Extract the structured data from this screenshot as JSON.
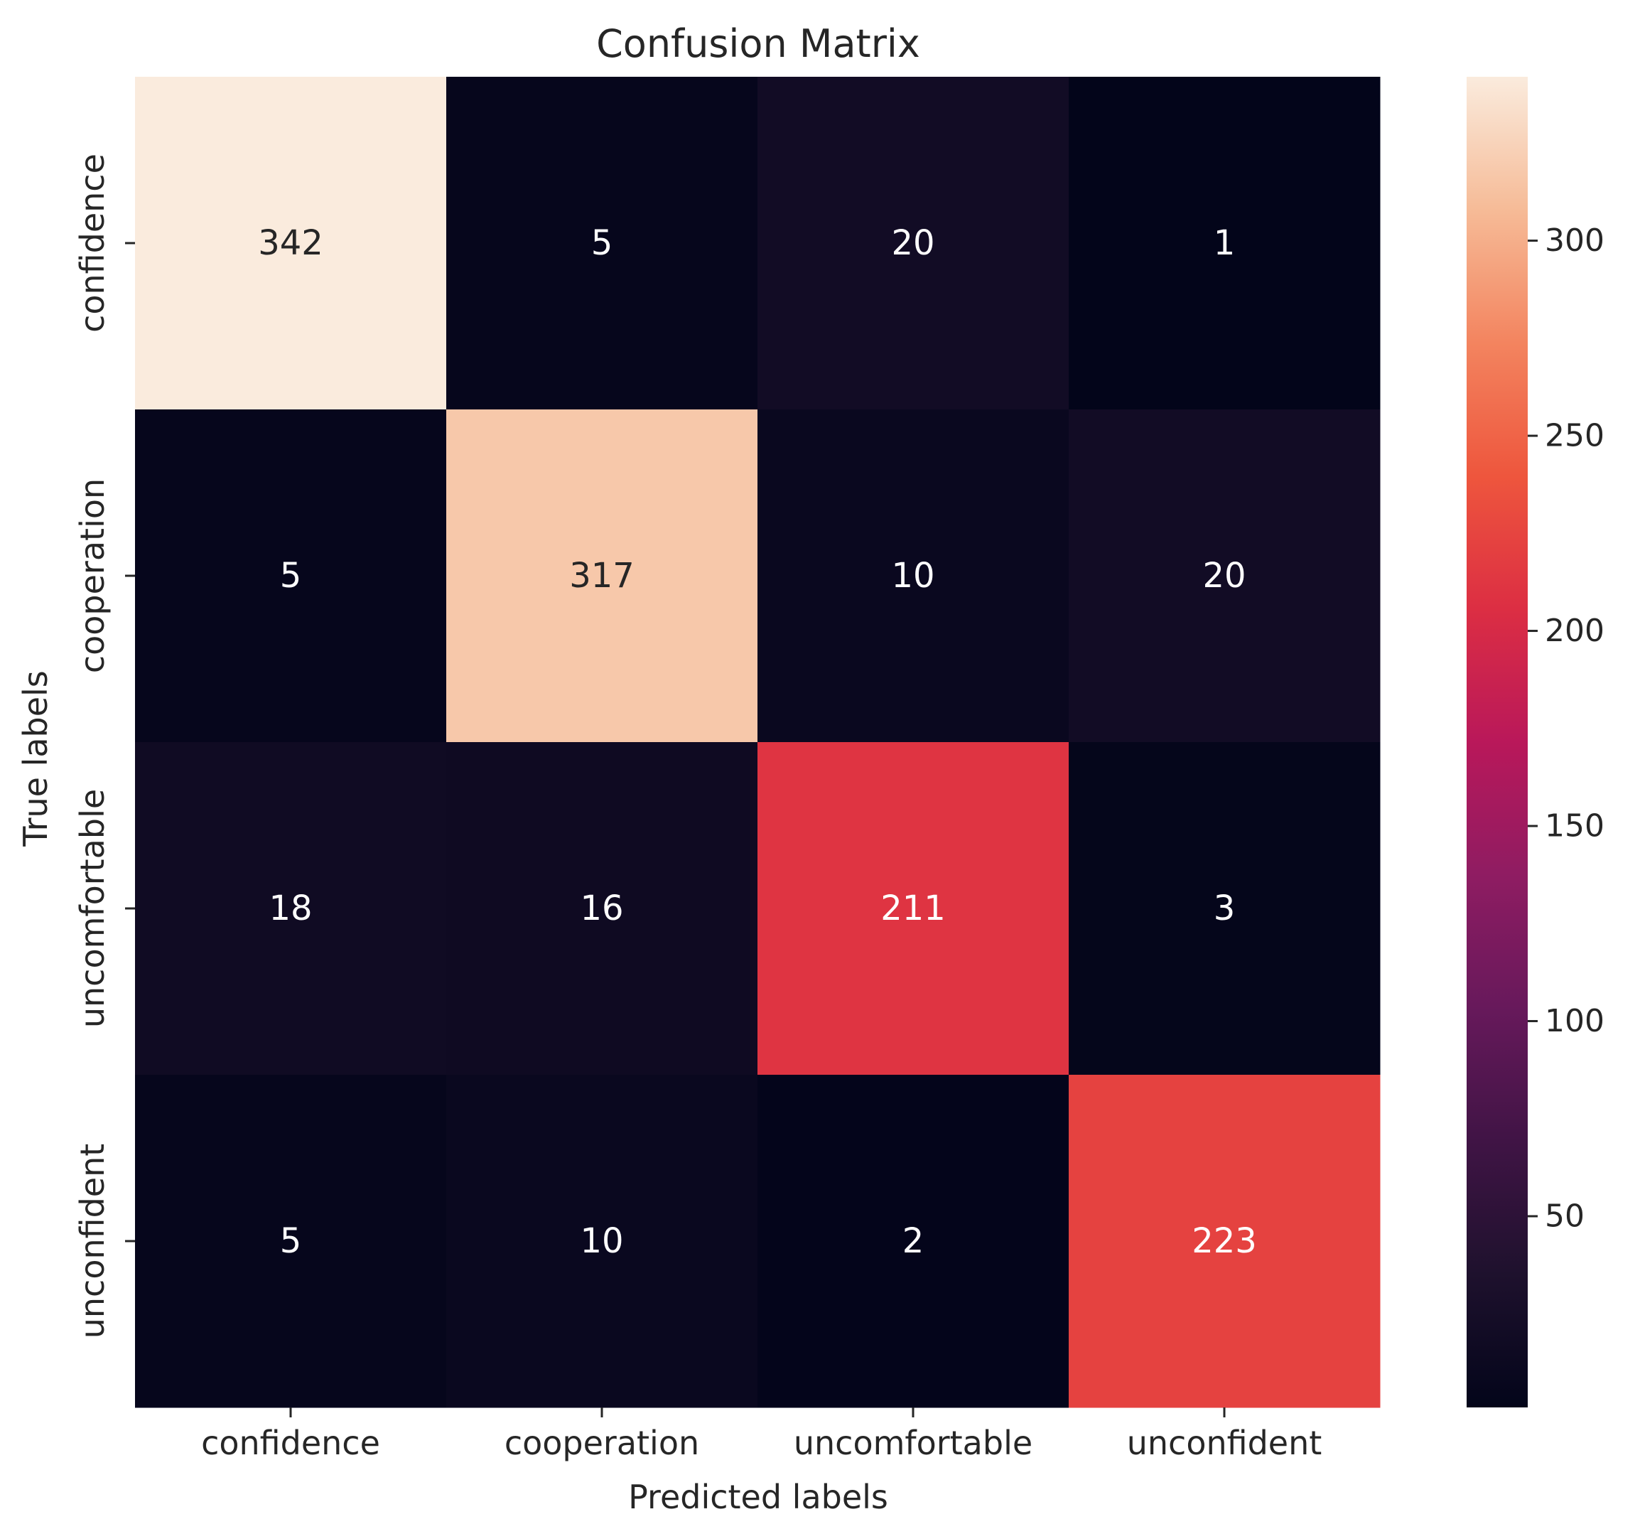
{
  "chart_data": {
    "type": "heatmap",
    "title": "Confusion Matrix",
    "xlabel": "Predicted labels",
    "ylabel": "True labels",
    "x_categories": [
      "confidence",
      "cooperation",
      "uncomfortable",
      "unconfident"
    ],
    "y_categories": [
      "confidence",
      "cooperation",
      "uncomfortable",
      "unconfident"
    ],
    "values": [
      [
        342,
        5,
        20,
        1
      ],
      [
        5,
        317,
        10,
        20
      ],
      [
        18,
        16,
        211,
        3
      ],
      [
        5,
        10,
        2,
        223
      ]
    ],
    "colormap": "rocket",
    "colorbar": {
      "range": [
        1,
        342
      ],
      "ticks": [
        50,
        100,
        150,
        200,
        250,
        300
      ]
    }
  }
}
